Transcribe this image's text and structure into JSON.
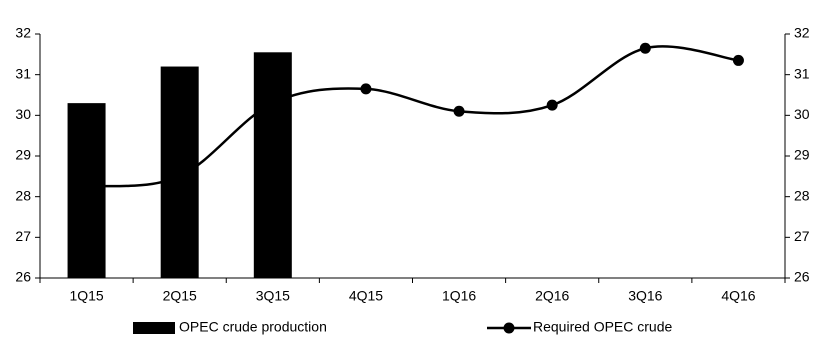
{
  "chart_data": {
    "type": "bar-line",
    "categories": [
      "1Q15",
      "2Q15",
      "3Q15",
      "4Q15",
      "1Q16",
      "2Q16",
      "3Q16",
      "4Q16"
    ],
    "series": [
      {
        "name": "OPEC crude production",
        "type": "bar",
        "color": "#000000",
        "values": [
          30.3,
          31.2,
          31.55,
          null,
          null,
          null,
          null,
          null
        ]
      },
      {
        "name": "Required OPEC crude",
        "type": "line",
        "axis": "y2",
        "color": "#000000",
        "values": [
          28.25,
          28.5,
          30.3,
          30.65,
          30.1,
          30.25,
          31.65,
          31.35
        ]
      }
    ],
    "ylim": [
      26,
      32
    ],
    "yticks": [
      26,
      27,
      28,
      29,
      30,
      31,
      32
    ],
    "y2lim": [
      26,
      32
    ],
    "y2ticks": [
      26,
      27,
      28,
      29,
      30,
      31,
      32
    ],
    "grid": false,
    "legend": "bottom"
  }
}
